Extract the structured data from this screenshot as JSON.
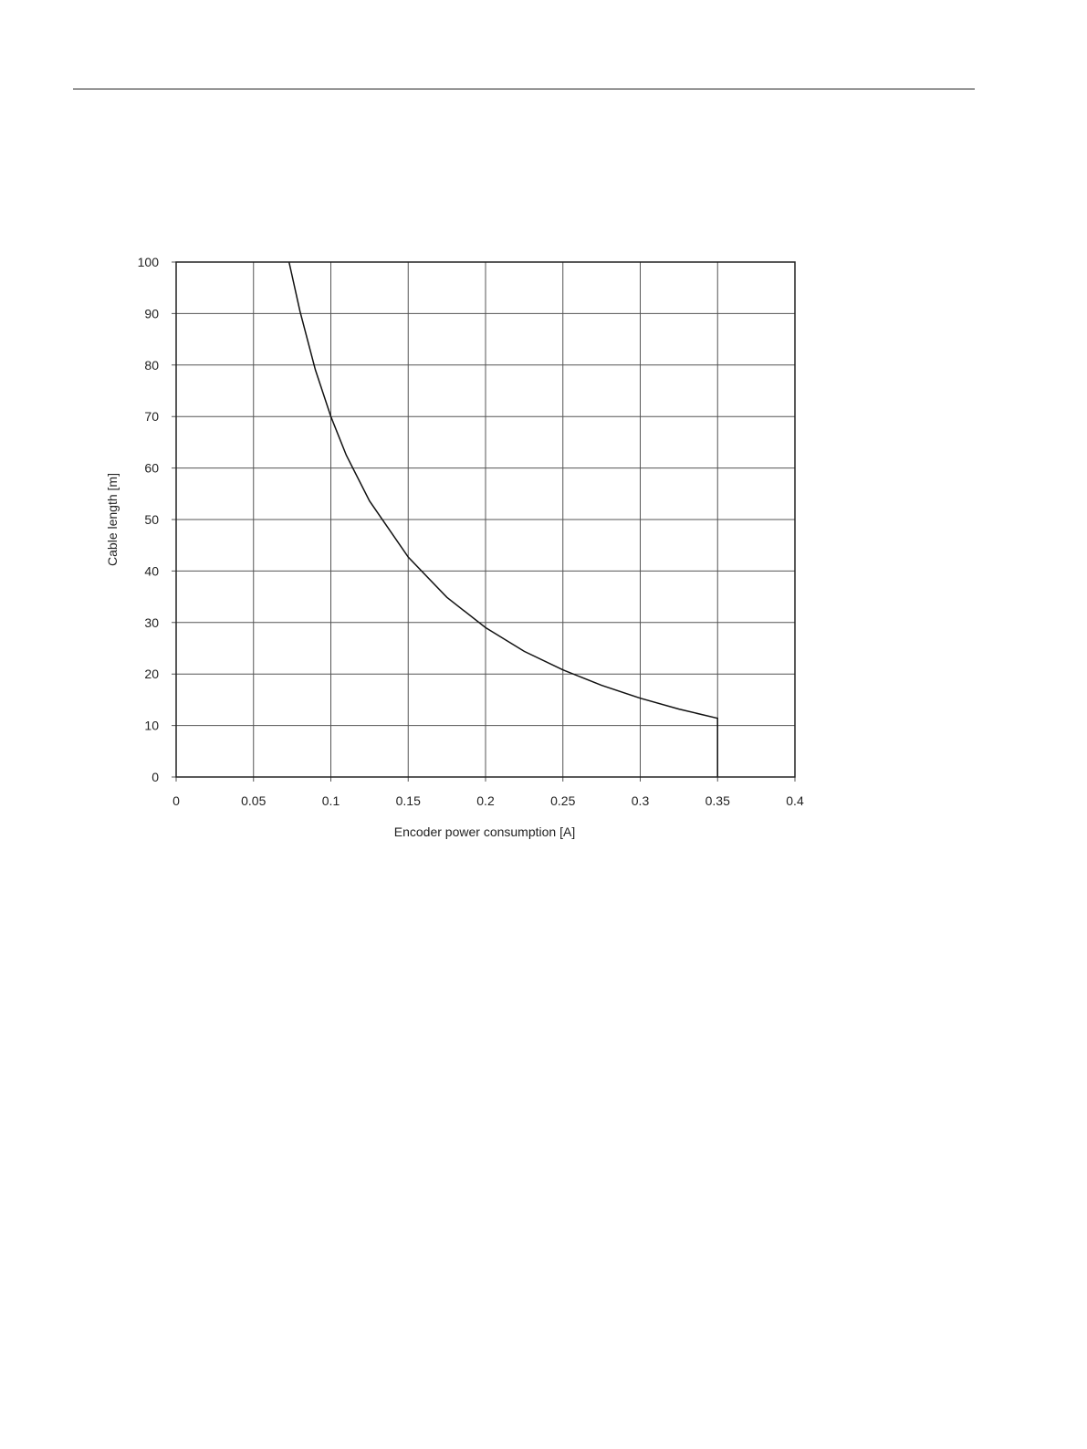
{
  "chart_data": {
    "type": "line",
    "title": "",
    "xlabel": "Encoder power consumption [A]",
    "ylabel": "Cable length [m]",
    "xlim": [
      0,
      0.4
    ],
    "ylim": [
      0,
      100
    ],
    "xticks": [
      "0",
      "0.05",
      "0.1",
      "0.15",
      "0.2",
      "0.25",
      "0.3",
      "0.35",
      "0.4"
    ],
    "yticks": [
      "0",
      "10",
      "20",
      "30",
      "40",
      "50",
      "60",
      "70",
      "80",
      "90",
      "100"
    ],
    "grid": true,
    "legend": "none",
    "series": [
      {
        "color": "#111111",
        "x": [
          0.073,
          0.08,
          0.09,
          0.1,
          0.11,
          0.125,
          0.15,
          0.175,
          0.2,
          0.225,
          0.25,
          0.275,
          0.3,
          0.325,
          0.35,
          0.35
        ],
        "y": [
          100,
          90.5,
          79.1,
          70,
          62.5,
          53.6,
          42.7,
          34.9,
          29,
          24.4,
          20.8,
          17.8,
          15.3,
          13.2,
          11.4,
          0
        ]
      }
    ]
  }
}
